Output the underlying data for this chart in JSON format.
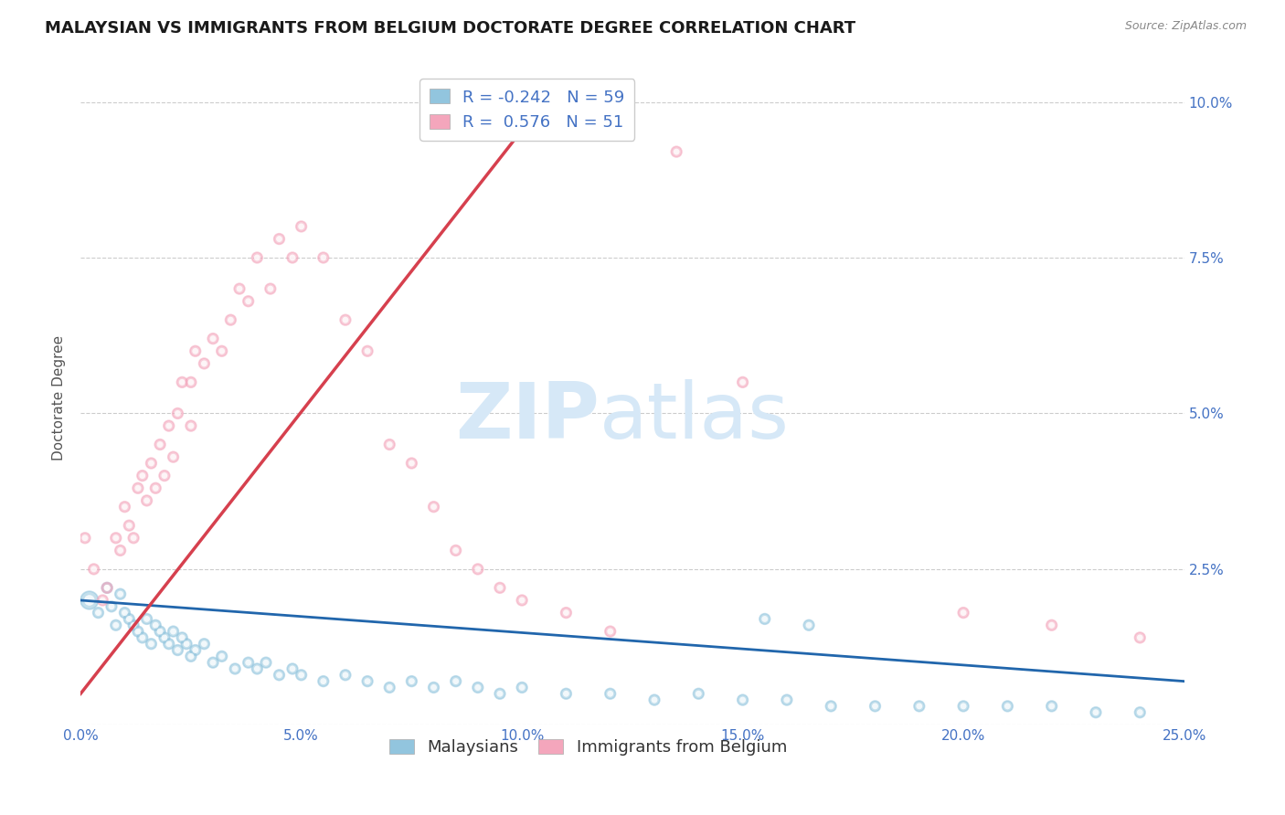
{
  "title": "MALAYSIAN VS IMMIGRANTS FROM BELGIUM DOCTORATE DEGREE CORRELATION CHART",
  "source": "Source: ZipAtlas.com",
  "ylabel": "Doctorate Degree",
  "xlim": [
    0.0,
    0.25
  ],
  "ylim": [
    0.0,
    0.105
  ],
  "xticks": [
    0.0,
    0.05,
    0.1,
    0.15,
    0.2,
    0.25
  ],
  "xticklabels": [
    "0.0%",
    "5.0%",
    "10.0%",
    "15.0%",
    "20.0%",
    "25.0%"
  ],
  "yticks_right": [
    0.0,
    0.025,
    0.05,
    0.075,
    0.1
  ],
  "yticklabels_right": [
    "",
    "2.5%",
    "5.0%",
    "7.5%",
    "10.0%"
  ],
  "legend_r1": "-0.242",
  "legend_n1": "59",
  "legend_r2": "0.576",
  "legend_n2": "51",
  "color_blue": "#92c5de",
  "color_pink": "#f4a6bc",
  "color_blue_line": "#2166ac",
  "color_pink_line": "#d6404e",
  "watermark_zip": "ZIP",
  "watermark_atlas": "atlas",
  "watermark_color": "#d6e8f7",
  "background_color": "#ffffff",
  "grid_color": "#cccccc",
  "label_color": "#4472c4",
  "blue_scatter_x": [
    0.002,
    0.004,
    0.006,
    0.007,
    0.008,
    0.009,
    0.01,
    0.011,
    0.012,
    0.013,
    0.014,
    0.015,
    0.016,
    0.017,
    0.018,
    0.019,
    0.02,
    0.021,
    0.022,
    0.023,
    0.024,
    0.025,
    0.026,
    0.028,
    0.03,
    0.032,
    0.035,
    0.038,
    0.04,
    0.042,
    0.045,
    0.048,
    0.05,
    0.055,
    0.06,
    0.065,
    0.07,
    0.075,
    0.08,
    0.085,
    0.09,
    0.095,
    0.1,
    0.11,
    0.12,
    0.13,
    0.14,
    0.15,
    0.16,
    0.17,
    0.18,
    0.19,
    0.2,
    0.21,
    0.22,
    0.23,
    0.24,
    0.155,
    0.165
  ],
  "blue_scatter_y": [
    0.02,
    0.018,
    0.022,
    0.019,
    0.016,
    0.021,
    0.018,
    0.017,
    0.016,
    0.015,
    0.014,
    0.017,
    0.013,
    0.016,
    0.015,
    0.014,
    0.013,
    0.015,
    0.012,
    0.014,
    0.013,
    0.011,
    0.012,
    0.013,
    0.01,
    0.011,
    0.009,
    0.01,
    0.009,
    0.01,
    0.008,
    0.009,
    0.008,
    0.007,
    0.008,
    0.007,
    0.006,
    0.007,
    0.006,
    0.007,
    0.006,
    0.005,
    0.006,
    0.005,
    0.005,
    0.004,
    0.005,
    0.004,
    0.004,
    0.003,
    0.003,
    0.003,
    0.003,
    0.003,
    0.003,
    0.002,
    0.002,
    0.017,
    0.016
  ],
  "blue_scatter_size": [
    200,
    70,
    70,
    70,
    70,
    70,
    70,
    70,
    70,
    70,
    70,
    70,
    70,
    70,
    70,
    70,
    70,
    70,
    70,
    70,
    70,
    70,
    70,
    70,
    70,
    70,
    70,
    70,
    70,
    70,
    70,
    70,
    70,
    70,
    70,
    70,
    70,
    70,
    70,
    70,
    70,
    70,
    70,
    70,
    70,
    70,
    70,
    70,
    70,
    70,
    70,
    70,
    70,
    70,
    70,
    70,
    70,
    70,
    70
  ],
  "pink_scatter_x": [
    0.001,
    0.003,
    0.005,
    0.006,
    0.008,
    0.009,
    0.01,
    0.011,
    0.012,
    0.013,
    0.014,
    0.015,
    0.016,
    0.017,
    0.018,
    0.019,
    0.02,
    0.021,
    0.022,
    0.023,
    0.025,
    0.026,
    0.028,
    0.03,
    0.032,
    0.034,
    0.036,
    0.038,
    0.04,
    0.043,
    0.045,
    0.048,
    0.05,
    0.055,
    0.06,
    0.065,
    0.07,
    0.075,
    0.08,
    0.085,
    0.09,
    0.095,
    0.1,
    0.11,
    0.12,
    0.135,
    0.15,
    0.2,
    0.22,
    0.24,
    0.025
  ],
  "pink_scatter_y": [
    0.03,
    0.025,
    0.02,
    0.022,
    0.03,
    0.028,
    0.035,
    0.032,
    0.03,
    0.038,
    0.04,
    0.036,
    0.042,
    0.038,
    0.045,
    0.04,
    0.048,
    0.043,
    0.05,
    0.055,
    0.055,
    0.06,
    0.058,
    0.062,
    0.06,
    0.065,
    0.07,
    0.068,
    0.075,
    0.07,
    0.078,
    0.075,
    0.08,
    0.075,
    0.065,
    0.06,
    0.045,
    0.042,
    0.035,
    0.028,
    0.025,
    0.022,
    0.02,
    0.018,
    0.015,
    0.092,
    0.055,
    0.018,
    0.016,
    0.014,
    0.048
  ],
  "pink_scatter_size": [
    70,
    70,
    70,
    70,
    70,
    70,
    70,
    70,
    70,
    70,
    70,
    70,
    70,
    70,
    70,
    70,
    70,
    70,
    70,
    70,
    70,
    70,
    70,
    70,
    70,
    70,
    70,
    70,
    70,
    70,
    70,
    70,
    70,
    70,
    70,
    70,
    70,
    70,
    70,
    70,
    70,
    70,
    70,
    70,
    70,
    70,
    70,
    70,
    70,
    70,
    70
  ],
  "blue_line_x": [
    0.0,
    0.25
  ],
  "blue_line_y": [
    0.02,
    0.007
  ],
  "pink_line_x": [
    0.0,
    0.105
  ],
  "pink_line_y": [
    0.005,
    0.1
  ],
  "title_fontsize": 13,
  "axis_label_fontsize": 11,
  "tick_fontsize": 11,
  "legend_fontsize": 13
}
